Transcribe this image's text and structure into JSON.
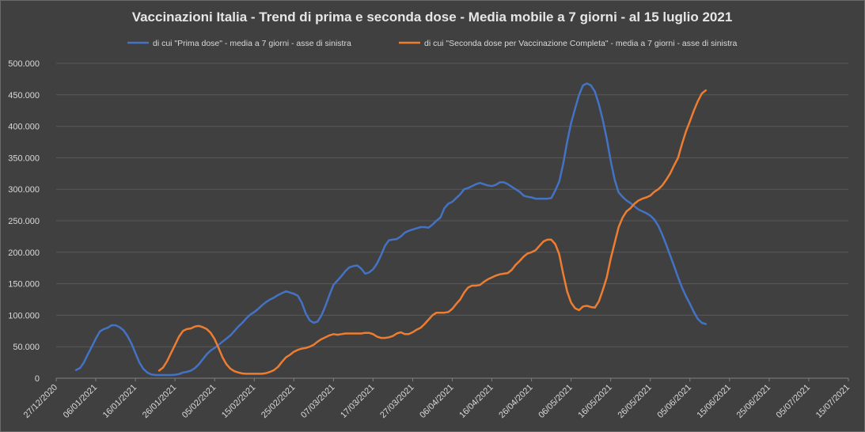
{
  "chart_data": {
    "type": "line",
    "title": "Vaccinazioni Italia - Trend di prima e seconda dose - Media mobile a 7 giorni - al 15 luglio 2021",
    "xlabel": "",
    "ylabel": "",
    "ylim": [
      0,
      500000
    ],
    "yticks": [
      0,
      50000,
      100000,
      150000,
      200000,
      250000,
      300000,
      350000,
      400000,
      450000,
      500000
    ],
    "ytick_labels": [
      "0",
      "50.000",
      "100.000",
      "150.000",
      "200.000",
      "250.000",
      "300.000",
      "350.000",
      "400.000",
      "450.000",
      "500.000"
    ],
    "x_start": "27/12/2020",
    "x_end": "15/07/2021",
    "x_range_days": [
      0,
      200
    ],
    "xtick_days": [
      0,
      10,
      20,
      30,
      40,
      50,
      60,
      70,
      80,
      90,
      100,
      110,
      120,
      130,
      140,
      150,
      160,
      170,
      180,
      190,
      200
    ],
    "xtick_labels": [
      "27/12/2020",
      "06/01/2021",
      "16/01/2021",
      "26/01/2021",
      "05/02/2021",
      "15/02/2021",
      "25/02/2021",
      "07/03/2021",
      "17/03/2021",
      "27/03/2021",
      "06/04/2021",
      "16/04/2021",
      "26/04/2021",
      "06/05/2021",
      "16/05/2021",
      "26/05/2021",
      "05/06/2021",
      "15/06/2021",
      "25/06/2021",
      "05/07/2021",
      "15/07/2021"
    ],
    "grid": true,
    "legend_position": "top",
    "series": [
      {
        "name": "di cui \"Prima dose\" - media a 7 giorni - asse di sinistra",
        "color": "#4472c4",
        "points": [
          [
            5,
            13000
          ],
          [
            6,
            16000
          ],
          [
            7,
            25000
          ],
          [
            8,
            38000
          ],
          [
            9,
            50000
          ],
          [
            10,
            63000
          ],
          [
            11,
            74000
          ],
          [
            12,
            78000
          ],
          [
            13,
            80000
          ],
          [
            14,
            84000
          ],
          [
            15,
            84000
          ],
          [
            16,
            81000
          ],
          [
            17,
            76000
          ],
          [
            18,
            67000
          ],
          [
            19,
            55000
          ],
          [
            20,
            40000
          ],
          [
            21,
            25000
          ],
          [
            22,
            15000
          ],
          [
            23,
            9000
          ],
          [
            24,
            6000
          ],
          [
            25,
            5000
          ],
          [
            26,
            5000
          ],
          [
            27,
            5000
          ],
          [
            28,
            5000
          ],
          [
            29,
            5000
          ],
          [
            30,
            5500
          ],
          [
            31,
            6500
          ],
          [
            32,
            9000
          ],
          [
            33,
            10000
          ],
          [
            34,
            12000
          ],
          [
            35,
            16000
          ],
          [
            36,
            22000
          ],
          [
            37,
            30000
          ],
          [
            38,
            38000
          ],
          [
            39,
            44000
          ],
          [
            40,
            48000
          ],
          [
            41,
            53000
          ],
          [
            42,
            58000
          ],
          [
            43,
            63000
          ],
          [
            44,
            68000
          ],
          [
            45,
            75000
          ],
          [
            46,
            82000
          ],
          [
            47,
            88000
          ],
          [
            48,
            95000
          ],
          [
            49,
            101000
          ],
          [
            50,
            105000
          ],
          [
            51,
            110000
          ],
          [
            52,
            116000
          ],
          [
            53,
            121000
          ],
          [
            54,
            125000
          ],
          [
            55,
            128000
          ],
          [
            56,
            132000
          ],
          [
            57,
            135000
          ],
          [
            58,
            138000
          ],
          [
            59,
            136000
          ],
          [
            60,
            134000
          ],
          [
            61,
            131000
          ],
          [
            62,
            120000
          ],
          [
            63,
            103000
          ],
          [
            64,
            92000
          ],
          [
            65,
            88000
          ],
          [
            66,
            90000
          ],
          [
            67,
            100000
          ],
          [
            68,
            115000
          ],
          [
            69,
            132000
          ],
          [
            70,
            148000
          ],
          [
            71,
            155000
          ],
          [
            72,
            162000
          ],
          [
            73,
            170000
          ],
          [
            74,
            176000
          ],
          [
            75,
            178000
          ],
          [
            76,
            179000
          ],
          [
            77,
            174000
          ],
          [
            78,
            166000
          ],
          [
            79,
            168000
          ],
          [
            80,
            173000
          ],
          [
            81,
            182000
          ],
          [
            82,
            195000
          ],
          [
            83,
            210000
          ],
          [
            84,
            219000
          ],
          [
            85,
            220000
          ],
          [
            86,
            221000
          ],
          [
            87,
            225000
          ],
          [
            88,
            231000
          ],
          [
            89,
            234000
          ],
          [
            90,
            236000
          ],
          [
            91,
            238000
          ],
          [
            92,
            240000
          ],
          [
            93,
            240000
          ],
          [
            94,
            239000
          ],
          [
            95,
            244000
          ],
          [
            96,
            250000
          ],
          [
            97,
            255000
          ],
          [
            98,
            270000
          ],
          [
            99,
            277000
          ],
          [
            100,
            280000
          ],
          [
            101,
            286000
          ],
          [
            102,
            292000
          ],
          [
            103,
            300000
          ],
          [
            104,
            302000
          ],
          [
            105,
            305000
          ],
          [
            106,
            308000
          ],
          [
            107,
            310000
          ],
          [
            108,
            308000
          ],
          [
            109,
            306000
          ],
          [
            110,
            305000
          ],
          [
            111,
            307000
          ],
          [
            112,
            311000
          ],
          [
            113,
            311000
          ],
          [
            114,
            308000
          ],
          [
            115,
            304000
          ],
          [
            116,
            300000
          ],
          [
            117,
            296000
          ],
          [
            118,
            290000
          ],
          [
            119,
            288000
          ],
          [
            120,
            287000
          ],
          [
            121,
            285000
          ],
          [
            122,
            285000
          ],
          [
            123,
            285000
          ],
          [
            124,
            285000
          ],
          [
            125,
            286000
          ],
          [
            126,
            298000
          ],
          [
            127,
            312000
          ],
          [
            128,
            340000
          ],
          [
            129,
            375000
          ],
          [
            130,
            405000
          ],
          [
            131,
            428000
          ],
          [
            132,
            450000
          ],
          [
            133,
            465000
          ],
          [
            134,
            468000
          ],
          [
            135,
            465000
          ],
          [
            136,
            455000
          ],
          [
            137,
            435000
          ],
          [
            138,
            410000
          ],
          [
            139,
            380000
          ],
          [
            140,
            345000
          ],
          [
            141,
            315000
          ],
          [
            142,
            295000
          ],
          [
            143,
            288000
          ],
          [
            144,
            282000
          ],
          [
            145,
            278000
          ],
          [
            146,
            273000
          ],
          [
            147,
            268000
          ],
          [
            148,
            265000
          ],
          [
            149,
            262000
          ],
          [
            150,
            258000
          ],
          [
            151,
            252000
          ],
          [
            152,
            242000
          ],
          [
            153,
            228000
          ],
          [
            154,
            212000
          ],
          [
            155,
            195000
          ],
          [
            156,
            178000
          ],
          [
            157,
            160000
          ],
          [
            158,
            144000
          ],
          [
            159,
            130000
          ],
          [
            160,
            118000
          ],
          [
            161,
            105000
          ],
          [
            162,
            94000
          ],
          [
            163,
            88000
          ],
          [
            164,
            86000
          ]
        ]
      },
      {
        "name": "di cui \"Seconda dose per Vaccinazione Completa\" - media a 7 giorni - asse di sinistra",
        "color": "#ed7d31",
        "points": [
          [
            26,
            12000
          ],
          [
            27,
            17000
          ],
          [
            28,
            27000
          ],
          [
            29,
            40000
          ],
          [
            30,
            53000
          ],
          [
            31,
            66000
          ],
          [
            32,
            75000
          ],
          [
            33,
            78000
          ],
          [
            34,
            79000
          ],
          [
            35,
            82000
          ],
          [
            36,
            83000
          ],
          [
            37,
            81000
          ],
          [
            38,
            78000
          ],
          [
            39,
            72000
          ],
          [
            40,
            62000
          ],
          [
            41,
            48000
          ],
          [
            42,
            33000
          ],
          [
            43,
            22000
          ],
          [
            44,
            15000
          ],
          [
            45,
            11000
          ],
          [
            46,
            9000
          ],
          [
            47,
            7500
          ],
          [
            48,
            7000
          ],
          [
            49,
            7000
          ],
          [
            50,
            7000
          ],
          [
            51,
            7000
          ],
          [
            52,
            7000
          ],
          [
            53,
            8000
          ],
          [
            54,
            10000
          ],
          [
            55,
            13000
          ],
          [
            56,
            18000
          ],
          [
            57,
            26000
          ],
          [
            58,
            33000
          ],
          [
            59,
            37000
          ],
          [
            60,
            42000
          ],
          [
            61,
            45000
          ],
          [
            62,
            47000
          ],
          [
            63,
            48000
          ],
          [
            64,
            50000
          ],
          [
            65,
            53000
          ],
          [
            66,
            58000
          ],
          [
            67,
            62000
          ],
          [
            68,
            65000
          ],
          [
            69,
            68000
          ],
          [
            70,
            70000
          ],
          [
            71,
            69000
          ],
          [
            72,
            70000
          ],
          [
            73,
            71000
          ],
          [
            74,
            71000
          ],
          [
            75,
            71000
          ],
          [
            76,
            71000
          ],
          [
            77,
            71000
          ],
          [
            78,
            72000
          ],
          [
            79,
            72000
          ],
          [
            80,
            70000
          ],
          [
            81,
            66000
          ],
          [
            82,
            64000
          ],
          [
            83,
            64000
          ],
          [
            84,
            65000
          ],
          [
            85,
            67000
          ],
          [
            86,
            71000
          ],
          [
            87,
            73000
          ],
          [
            88,
            70000
          ],
          [
            89,
            70000
          ],
          [
            90,
            73000
          ],
          [
            91,
            77000
          ],
          [
            92,
            80000
          ],
          [
            93,
            86000
          ],
          [
            94,
            93000
          ],
          [
            95,
            100000
          ],
          [
            96,
            104000
          ],
          [
            97,
            104000
          ],
          [
            98,
            104000
          ],
          [
            99,
            105000
          ],
          [
            100,
            110000
          ],
          [
            101,
            118000
          ],
          [
            102,
            125000
          ],
          [
            103,
            136000
          ],
          [
            104,
            144000
          ],
          [
            105,
            147000
          ],
          [
            106,
            147000
          ],
          [
            107,
            148000
          ],
          [
            108,
            153000
          ],
          [
            109,
            157000
          ],
          [
            110,
            160000
          ],
          [
            111,
            163000
          ],
          [
            112,
            165000
          ],
          [
            113,
            166000
          ],
          [
            114,
            167000
          ],
          [
            115,
            172000
          ],
          [
            116,
            180000
          ],
          [
            117,
            186000
          ],
          [
            118,
            193000
          ],
          [
            119,
            198000
          ],
          [
            120,
            200000
          ],
          [
            121,
            203000
          ],
          [
            122,
            210000
          ],
          [
            123,
            217000
          ],
          [
            124,
            220000
          ],
          [
            125,
            220000
          ],
          [
            126,
            213000
          ],
          [
            127,
            197000
          ],
          [
            128,
            166000
          ],
          [
            129,
            138000
          ],
          [
            130,
            120000
          ],
          [
            131,
            111000
          ],
          [
            132,
            108000
          ],
          [
            133,
            114000
          ],
          [
            134,
            115000
          ],
          [
            135,
            113000
          ],
          [
            136,
            112000
          ],
          [
            137,
            122000
          ],
          [
            138,
            140000
          ],
          [
            139,
            160000
          ],
          [
            140,
            190000
          ],
          [
            141,
            215000
          ],
          [
            142,
            240000
          ],
          [
            143,
            255000
          ],
          [
            144,
            265000
          ],
          [
            145,
            270000
          ],
          [
            146,
            277000
          ],
          [
            147,
            282000
          ],
          [
            148,
            285000
          ],
          [
            149,
            287000
          ],
          [
            150,
            290000
          ],
          [
            151,
            296000
          ],
          [
            152,
            300000
          ],
          [
            153,
            306000
          ],
          [
            154,
            315000
          ],
          [
            155,
            325000
          ],
          [
            156,
            338000
          ],
          [
            157,
            350000
          ],
          [
            158,
            372000
          ],
          [
            159,
            392000
          ],
          [
            160,
            408000
          ],
          [
            161,
            425000
          ],
          [
            162,
            440000
          ],
          [
            163,
            452000
          ],
          [
            164,
            457000
          ]
        ]
      }
    ]
  }
}
